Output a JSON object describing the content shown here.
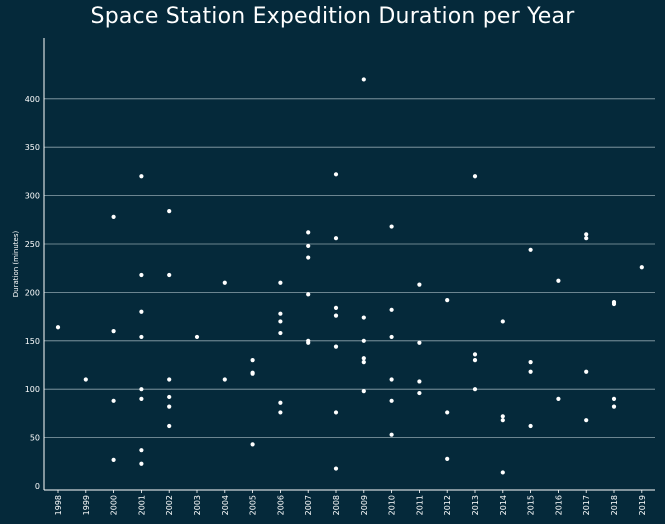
{
  "chart_data": {
    "type": "scatter",
    "title": "Space Station Expedition Duration per Year",
    "xlabel": "",
    "ylabel": "Duration (minutes)",
    "ylim": [
      0,
      440
    ],
    "yticks": [
      0,
      50,
      100,
      150,
      200,
      250,
      300,
      350,
      400
    ],
    "categories": [
      "1998",
      "1999",
      "2000",
      "2001",
      "2002",
      "2003",
      "2004",
      "2005",
      "2006",
      "2007",
      "2008",
      "2009",
      "2010",
      "2011",
      "2012",
      "2013",
      "2014",
      "2015",
      "2016",
      "2017",
      "2018",
      "2019"
    ],
    "grid": "horizontal",
    "colors": {
      "background": "#05293a",
      "points": "#ffffff",
      "gridlines": "#8fa4ad",
      "axes": "#ffffff"
    },
    "points": [
      {
        "x": "1998",
        "y": 164
      },
      {
        "x": "1999",
        "y": 110
      },
      {
        "x": "2000",
        "y": 278
      },
      {
        "x": "2000",
        "y": 160
      },
      {
        "x": "2000",
        "y": 88
      },
      {
        "x": "2000",
        "y": 27
      },
      {
        "x": "2001",
        "y": 320
      },
      {
        "x": "2001",
        "y": 218
      },
      {
        "x": "2001",
        "y": 180
      },
      {
        "x": "2001",
        "y": 154
      },
      {
        "x": "2001",
        "y": 100
      },
      {
        "x": "2001",
        "y": 90
      },
      {
        "x": "2001",
        "y": 37
      },
      {
        "x": "2001",
        "y": 23
      },
      {
        "x": "2002",
        "y": 284
      },
      {
        "x": "2002",
        "y": 218
      },
      {
        "x": "2002",
        "y": 110
      },
      {
        "x": "2002",
        "y": 92
      },
      {
        "x": "2002",
        "y": 82
      },
      {
        "x": "2002",
        "y": 62
      },
      {
        "x": "2003",
        "y": 154
      },
      {
        "x": "2004",
        "y": 210
      },
      {
        "x": "2004",
        "y": 110
      },
      {
        "x": "2005",
        "y": 130
      },
      {
        "x": "2005",
        "y": 117
      },
      {
        "x": "2005",
        "y": 116
      },
      {
        "x": "2005",
        "y": 43
      },
      {
        "x": "2006",
        "y": 210
      },
      {
        "x": "2006",
        "y": 178
      },
      {
        "x": "2006",
        "y": 170
      },
      {
        "x": "2006",
        "y": 158
      },
      {
        "x": "2006",
        "y": 86
      },
      {
        "x": "2006",
        "y": 76
      },
      {
        "x": "2007",
        "y": 262
      },
      {
        "x": "2007",
        "y": 248
      },
      {
        "x": "2007",
        "y": 236
      },
      {
        "x": "2007",
        "y": 198
      },
      {
        "x": "2007",
        "y": 150
      },
      {
        "x": "2007",
        "y": 148
      },
      {
        "x": "2008",
        "y": 322
      },
      {
        "x": "2008",
        "y": 256
      },
      {
        "x": "2008",
        "y": 184
      },
      {
        "x": "2008",
        "y": 176
      },
      {
        "x": "2008",
        "y": 144
      },
      {
        "x": "2008",
        "y": 76
      },
      {
        "x": "2008",
        "y": 18
      },
      {
        "x": "2009",
        "y": 420
      },
      {
        "x": "2009",
        "y": 174
      },
      {
        "x": "2009",
        "y": 150
      },
      {
        "x": "2009",
        "y": 132
      },
      {
        "x": "2009",
        "y": 128
      },
      {
        "x": "2009",
        "y": 98
      },
      {
        "x": "2010",
        "y": 268
      },
      {
        "x": "2010",
        "y": 182
      },
      {
        "x": "2010",
        "y": 154
      },
      {
        "x": "2010",
        "y": 110
      },
      {
        "x": "2010",
        "y": 88
      },
      {
        "x": "2010",
        "y": 53
      },
      {
        "x": "2011",
        "y": 208
      },
      {
        "x": "2011",
        "y": 148
      },
      {
        "x": "2011",
        "y": 108
      },
      {
        "x": "2011",
        "y": 96
      },
      {
        "x": "2012",
        "y": 192
      },
      {
        "x": "2012",
        "y": 76
      },
      {
        "x": "2012",
        "y": 28
      },
      {
        "x": "2013",
        "y": 320
      },
      {
        "x": "2013",
        "y": 136
      },
      {
        "x": "2013",
        "y": 130
      },
      {
        "x": "2013",
        "y": 100
      },
      {
        "x": "2014",
        "y": 170
      },
      {
        "x": "2014",
        "y": 72
      },
      {
        "x": "2014",
        "y": 68
      },
      {
        "x": "2014",
        "y": 14
      },
      {
        "x": "2015",
        "y": 244
      },
      {
        "x": "2015",
        "y": 128
      },
      {
        "x": "2015",
        "y": 118
      },
      {
        "x": "2015",
        "y": 62
      },
      {
        "x": "2016",
        "y": 212
      },
      {
        "x": "2016",
        "y": 90
      },
      {
        "x": "2017",
        "y": 260
      },
      {
        "x": "2017",
        "y": 256
      },
      {
        "x": "2017",
        "y": 118
      },
      {
        "x": "2017",
        "y": 68
      },
      {
        "x": "2018",
        "y": 190
      },
      {
        "x": "2018",
        "y": 188
      },
      {
        "x": "2018",
        "y": 90
      },
      {
        "x": "2018",
        "y": 82
      },
      {
        "x": "2019",
        "y": 226
      }
    ]
  }
}
